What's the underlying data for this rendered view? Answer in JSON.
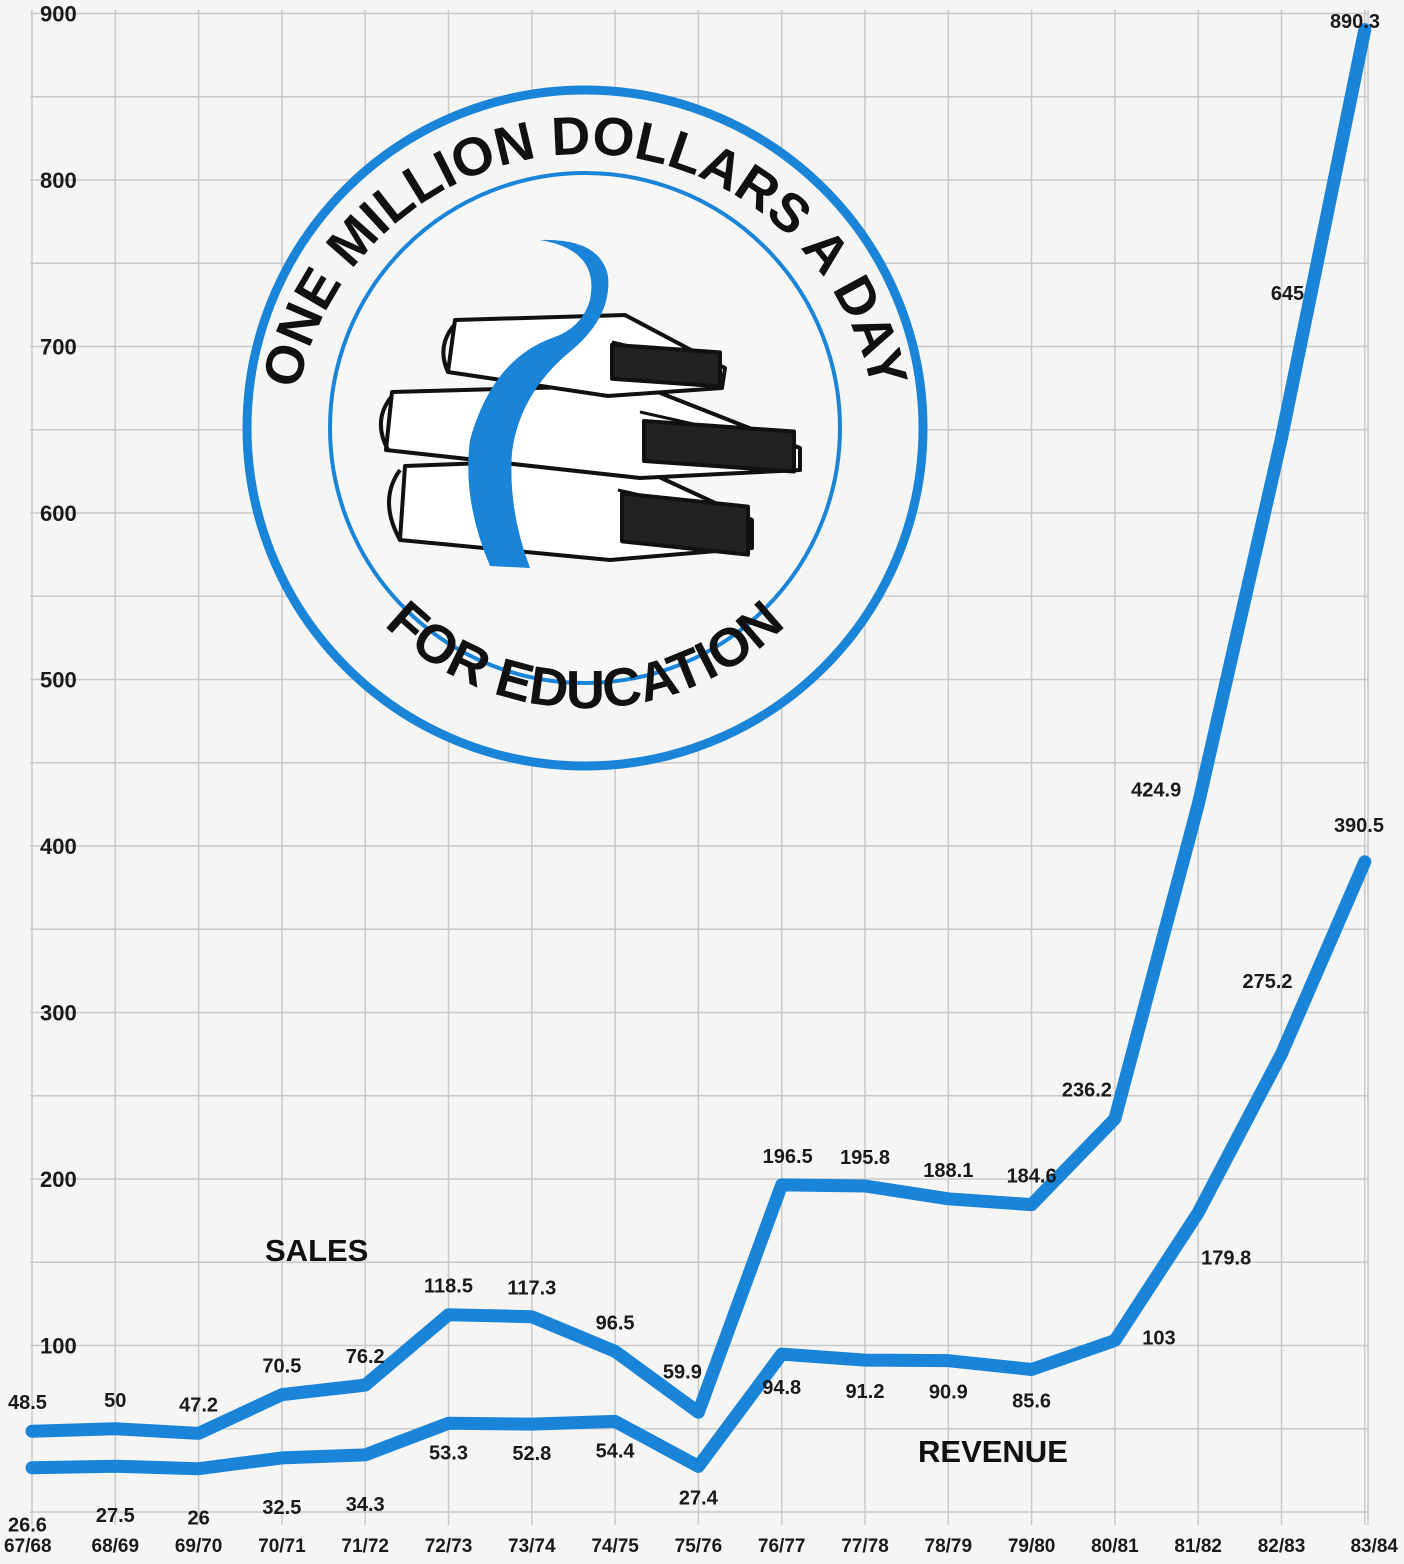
{
  "chart_data": {
    "type": "line",
    "title": "",
    "xlabel": "",
    "ylabel": "",
    "categories": [
      "67/68",
      "68/69",
      "69/70",
      "70/71",
      "71/72",
      "72/73",
      "73/74",
      "74/75",
      "75/76",
      "76/77",
      "77/78",
      "78/79",
      "79/80",
      "80/81",
      "81/82",
      "82/83",
      "83/84"
    ],
    "ylim": [
      0,
      900
    ],
    "yticks": [
      100,
      200,
      300,
      400,
      500,
      600,
      700,
      800,
      900
    ],
    "grid": true,
    "colors": {
      "line": "#1a85d8",
      "grid": "#c9c9c9",
      "background": "#f5f5f3"
    },
    "series": [
      {
        "name": "SALES",
        "values": [
          48.5,
          50,
          47.2,
          70.5,
          76.2,
          118.5,
          117.3,
          96.5,
          59.9,
          196.5,
          195.8,
          188.1,
          184.6,
          236.2,
          424.9,
          645,
          890.3
        ],
        "labels": [
          "48.5",
          "50",
          "47.2",
          "70.5",
          "76.2",
          "118.5",
          "117.3",
          "96.5",
          "59.9",
          "196.5",
          "195.8",
          "188.1",
          "184.6",
          "236.2",
          "424.9",
          "645",
          "890.3"
        ]
      },
      {
        "name": "REVENUE",
        "values": [
          26.6,
          27.5,
          26,
          32.5,
          34.3,
          53.3,
          52.8,
          54.4,
          27.4,
          94.8,
          91.2,
          90.9,
          85.6,
          103,
          179.8,
          275.2,
          390.5
        ],
        "labels": [
          "26.6",
          "27.5",
          "26",
          "32.5",
          "34.3",
          "53.3",
          "52.8",
          "54.4",
          "27.4",
          "94.8",
          "91.2",
          "90.9",
          "85.6",
          "103",
          "179.8",
          "275.2",
          "390.5"
        ]
      }
    ]
  },
  "logo": {
    "top_text": "ONE MILLION DOLLARS A DAY",
    "bottom_text": "FOR EDUCATION",
    "icon": "books-with-ribbon-icon",
    "ring_color": "#1a85d8"
  }
}
